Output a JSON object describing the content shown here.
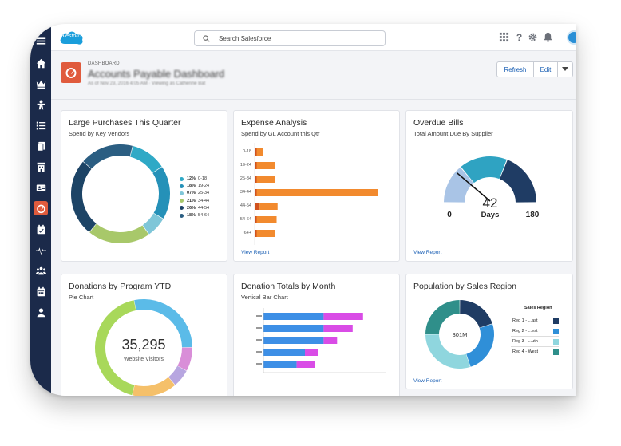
{
  "colors": {
    "nav": "#1b2a4a",
    "accent": "#e05b3d",
    "link": "#1a5fb4",
    "orange": "#f28a2e",
    "dark_orange": "#d0521e",
    "blue": "#3d8fe6",
    "magenta": "#d94ce6",
    "teal": "#2fa9c6",
    "navy": "#1f3c64"
  },
  "nav_icons": [
    "menu-icon",
    "home-icon",
    "crown-icon",
    "person-icon",
    "list-icon",
    "files-icon",
    "building-icon",
    "contact-card-icon",
    "dashboard-icon",
    "calendar-check-icon",
    "pulse-icon",
    "group-icon",
    "calendar-icon",
    "user-icon"
  ],
  "topbar": {
    "logo": "salesforce",
    "search_placeholder": "Search Salesforce",
    "icons": [
      "apps-grid-icon",
      "help-icon",
      "gear-icon",
      "bell-icon"
    ]
  },
  "header": {
    "crumb": "DASHBOARD",
    "title": "Accounts Payable Dashboard",
    "subtitle": "As of Nov 23, 2016 4:05 AM · Viewing as Catherine Bat",
    "buttons": {
      "refresh": "Refresh",
      "edit": "Edit"
    }
  },
  "cards": {
    "purchases": {
      "title": "Large Purchases This Quarter",
      "subtitle": "Spend by Key Vendors",
      "legend": [
        {
          "pct": "12%",
          "range": "0-18",
          "color": "#2fa9c6"
        },
        {
          "pct": "18%",
          "range": "19-24",
          "color": "#2591b8"
        },
        {
          "pct": "07%",
          "range": "25-34",
          "color": "#7fc6d8"
        },
        {
          "pct": "21%",
          "range": "34-44",
          "color": "#a8c86a"
        },
        {
          "pct": "26%",
          "range": "44-54",
          "color": "#1d4466"
        },
        {
          "pct": "18%",
          "range": "54-64",
          "color": "#2b5e82"
        }
      ]
    },
    "expense": {
      "title": "Expense Analysis",
      "subtitle": "Spend by GL Account this Qtr",
      "view_report": "View Report"
    },
    "overdue": {
      "title": "Overdue Bills",
      "subtitle": "Total Amount Due By Supplier",
      "gauge_value": "42",
      "gauge_unit": "Days",
      "gauge_min": "0",
      "gauge_max": "180",
      "gauge_fraction": 0.233,
      "view_report": "View Report"
    },
    "donations": {
      "title": "Donations by Program YTD",
      "subtitle": "Pie Chart",
      "center_value": "35,295",
      "center_label": "Website Visitors"
    },
    "totals": {
      "title": "Donation Totals by Month",
      "subtitle": "Vertical Bar Chart"
    },
    "population": {
      "title": "Population by Sales Region",
      "center_value": "301M",
      "legend_title": "Sales Region",
      "legend": [
        {
          "label": "Reg 1 - ...ast",
          "color": "#1f3c64"
        },
        {
          "label": "Reg 2 - ...est",
          "color": "#2f8fd8"
        },
        {
          "label": "Reg 3 - ...uth",
          "color": "#8fd6de"
        },
        {
          "label": "Reg 4 - West",
          "color": "#2f8f8a"
        }
      ],
      "view_report": "View Report"
    }
  },
  "chart_data": [
    {
      "type": "pie",
      "categories": [
        "0-18",
        "19-24",
        "25-34",
        "34-44",
        "44-54",
        "54-64"
      ],
      "values": [
        12,
        18,
        7,
        21,
        26,
        18
      ],
      "title": "Large Purchases This Quarter"
    },
    {
      "type": "bar",
      "orientation": "horizontal",
      "title": "Expense Analysis",
      "categories": [
        "0-18",
        "19-24",
        "25-34",
        "34-44",
        "44-54",
        "54-64",
        "64+"
      ],
      "series": [
        {
          "values": [
            2,
            2,
            2,
            2,
            5,
            2,
            2
          ]
        },
        {
          "values": [
            6,
            18,
            18,
            122,
            18,
            20,
            18
          ]
        }
      ]
    },
    {
      "type": "bar",
      "orientation": "horizontal",
      "stacked": true,
      "title": "Donation Totals by Month",
      "series": [
        {
          "values": [
            58,
            58,
            58,
            40,
            32
          ]
        },
        {
          "values": [
            38,
            28,
            13,
            13,
            18
          ]
        }
      ]
    },
    {
      "type": "pie",
      "title": "Population by Sales Region",
      "categories": [
        "Reg 1 - ...ast",
        "Reg 2 - ...est",
        "Reg 3 - ...uth",
        "Reg 4 - West"
      ],
      "values": [
        20,
        25,
        30,
        25
      ]
    },
    {
      "type": "pie",
      "title": "Donations by Program YTD",
      "values": [
        28,
        8,
        6,
        15,
        43
      ]
    }
  ]
}
